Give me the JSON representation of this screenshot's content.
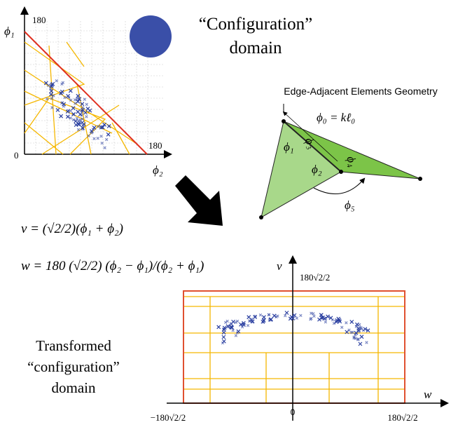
{
  "config_plot": {
    "phi1_max": "180",
    "phi1_label": "ϕ₁",
    "origin": "0",
    "phi2_max": "180",
    "phi2_label": "ϕ₂"
  },
  "config_title": {
    "line1": "“Configuration”",
    "line2": "domain"
  },
  "geometry": {
    "title": "Edge-Adjacent Elements Geometry",
    "phi0": "ϕ₀ = kℓ₀",
    "phi1": "ϕ₁",
    "phi2": "ϕ₂",
    "phi3": "ϕ₃",
    "phi4": "ϕ₄",
    "phi5": "ϕ₅"
  },
  "equations": {
    "v": "v = (√2/2)(ϕ₁ + ϕ₂)",
    "w": "w = 180 (√2/2) (ϕ₂ − ϕ₁)/(ϕ₂ + ϕ₁)"
  },
  "transformed_title": {
    "line1": "Transformed",
    "line2": "“configuration”",
    "line3": "domain"
  },
  "transformed_plot": {
    "v_label": "v",
    "v_max": "180√2/2",
    "w_label": "w",
    "origin": "0",
    "w_min": "−180√2/2",
    "w_max": "180√2/2"
  }
}
